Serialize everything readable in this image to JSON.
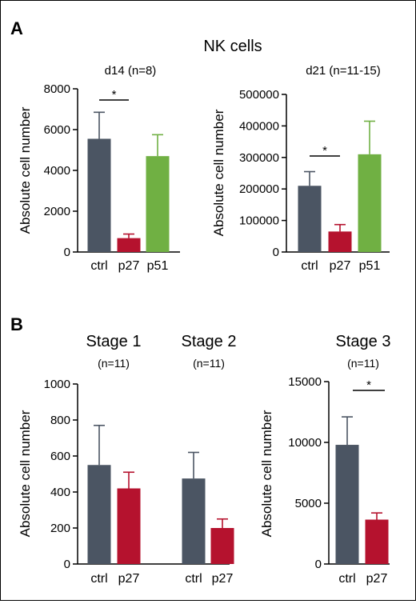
{
  "panel_letters": [
    "A",
    "B"
  ],
  "panelA_title": "NK cells",
  "colors": {
    "ctrl": "#4b5563",
    "p27": "#b5122e",
    "p51": "#70b043"
  },
  "chart_data": [
    {
      "id": "a-left",
      "type": "bar",
      "title": "d14 (n=8)",
      "ylabel": "Absolute cell number",
      "categories": [
        "ctrl",
        "p27",
        "p51"
      ],
      "values": [
        5550,
        680,
        4700
      ],
      "errors": [
        1300,
        200,
        1050
      ],
      "ylim": [
        0,
        8000
      ],
      "yticks": [
        "0",
        "2000",
        "4000",
        "6000",
        "8000"
      ],
      "significance": [
        {
          "between": [
            "ctrl",
            "p27"
          ],
          "label": "*"
        }
      ]
    },
    {
      "id": "a-right",
      "type": "bar",
      "title": "d21 (n=11-15)",
      "ylabel": "Absolute cell number",
      "categories": [
        "ctrl",
        "p27",
        "p51"
      ],
      "values": [
        210000,
        65000,
        310000
      ],
      "errors": [
        45000,
        22000,
        105000
      ],
      "ylim": [
        0,
        500000
      ],
      "yticks": [
        "0",
        "100000",
        "200000",
        "300000",
        "400000",
        "500000"
      ],
      "significance": [
        {
          "between": [
            "ctrl",
            "p27"
          ],
          "label": "*"
        }
      ]
    },
    {
      "id": "b-left",
      "type": "bar",
      "ylabel": "Absolute cell number",
      "groups": [
        {
          "title": "Stage 1",
          "n": "(n=11)"
        },
        {
          "title": "Stage 2",
          "n": "(n=11)"
        }
      ],
      "categories": [
        "ctrl",
        "p27",
        "ctrl",
        "p27"
      ],
      "values": [
        550,
        420,
        475,
        200
      ],
      "errors": [
        220,
        90,
        145,
        50
      ],
      "ylim": [
        0,
        1000
      ],
      "yticks": [
        "0",
        "200",
        "400",
        "600",
        "800",
        "1000"
      ]
    },
    {
      "id": "b-right",
      "type": "bar",
      "title": "Stage 3",
      "n": "(n=11)",
      "ylabel": "Absolute cell number",
      "categories": [
        "ctrl",
        "p27"
      ],
      "values": [
        9800,
        3650
      ],
      "errors": [
        2300,
        550
      ],
      "ylim": [
        0,
        15000
      ],
      "yticks": [
        "0",
        "5000",
        "10000",
        "15000"
      ],
      "significance": [
        {
          "between": [
            "ctrl",
            "p27"
          ],
          "label": "*"
        }
      ]
    }
  ]
}
